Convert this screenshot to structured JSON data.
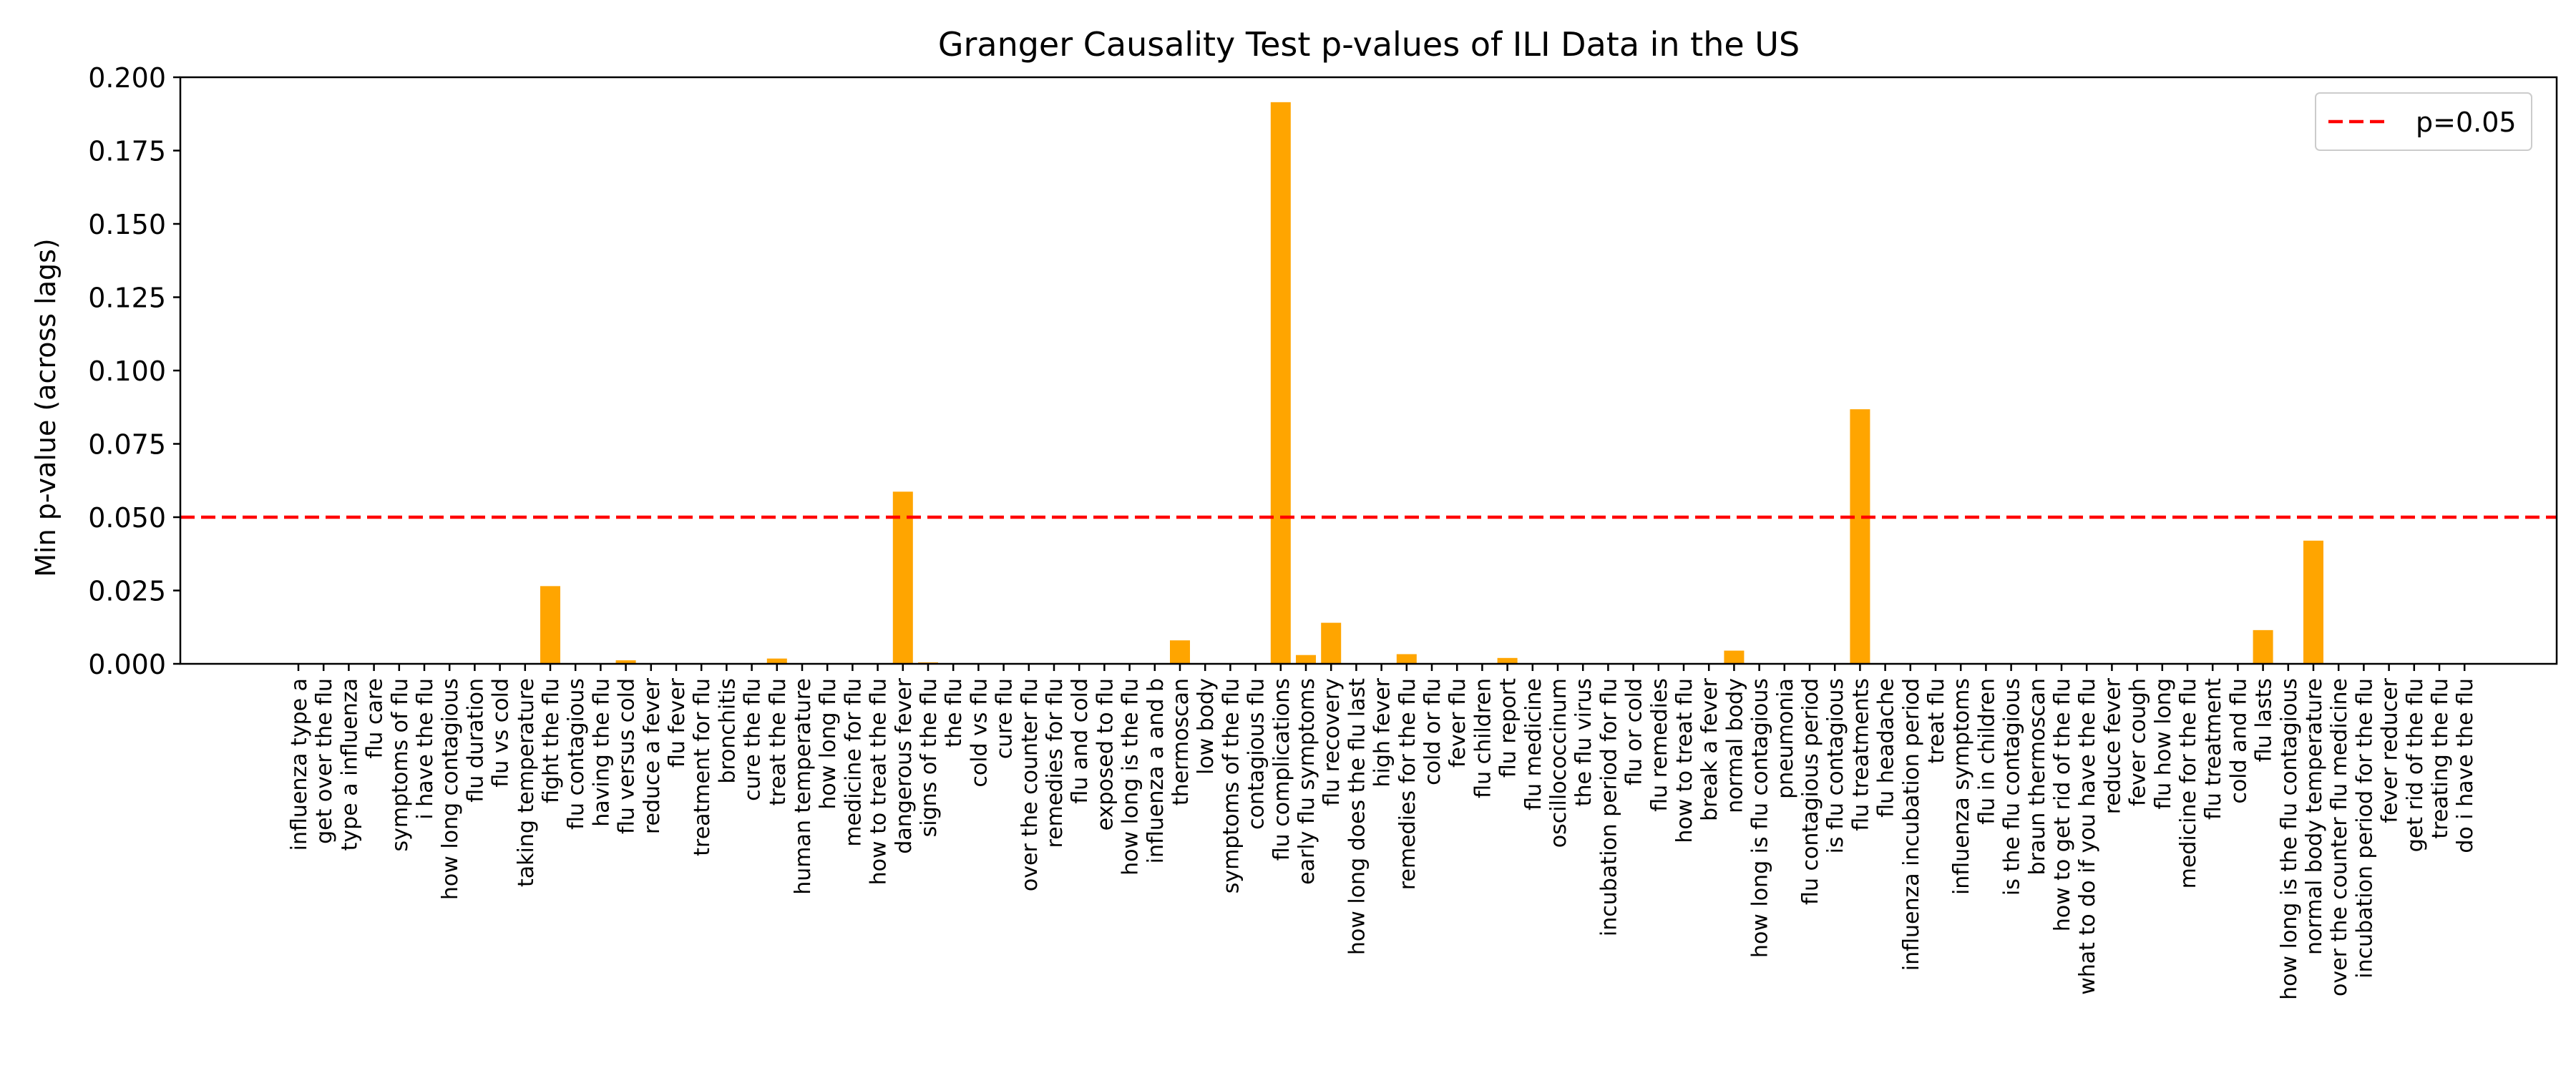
{
  "chart_data": {
    "type": "bar",
    "title": "Granger Causality Test p-values of ILI Data in the US",
    "xlabel": "",
    "ylabel": "Min p-value (across lags)",
    "ylim": [
      0,
      0.2
    ],
    "yticks": [
      "0.000",
      "0.025",
      "0.050",
      "0.075",
      "0.100",
      "0.125",
      "0.150",
      "0.175",
      "0.200"
    ],
    "grid": false,
    "legend": {
      "position": "top-right",
      "entries": [
        {
          "label": "p=0.05",
          "color": "#ff0000",
          "style": "dashed"
        }
      ]
    },
    "reference_line": {
      "value": 0.05,
      "label": "p=0.05",
      "color": "#ff0000"
    },
    "bar_color": "#ffa500",
    "categories": [
      "influenza type a",
      "get over the flu",
      "type a influenza",
      "flu care",
      "symptoms of flu",
      "i have the flu",
      "how long contagious",
      "flu duration",
      "flu vs cold",
      "taking temperature",
      "fight the flu",
      "flu contagious",
      "having the flu",
      "flu versus cold",
      "reduce a fever",
      "flu fever",
      "treatment for flu",
      "bronchitis",
      "cure the flu",
      "treat the flu",
      "human temperature",
      "how long flu",
      "medicine for flu",
      "how to treat the flu",
      "dangerous fever",
      "signs of the flu",
      "the flu",
      "cold vs flu",
      "cure flu",
      "over the counter flu",
      "remedies for flu",
      "flu and cold",
      "exposed to flu",
      "how long is the flu",
      "influenza a and b",
      "thermoscan",
      "low body",
      "symptoms of the flu",
      "contagious flu",
      "flu complications",
      "early flu symptoms",
      "flu recovery",
      "how long does the flu last",
      "high fever",
      "remedies for the flu",
      "cold or flu",
      "fever flu",
      "flu children",
      "flu report",
      "flu medicine",
      "oscillococcinum",
      "the flu virus",
      "incubation period for flu",
      "flu or cold",
      "flu remedies",
      "how to treat flu",
      "break a fever",
      "normal body",
      "how long is flu contagious",
      "pneumonia",
      "flu contagious period",
      "is flu contagious",
      "flu treatments",
      "flu headache",
      "influenza incubation period",
      "treat flu",
      "influenza symptoms",
      "flu in children",
      "is the flu contagious",
      "braun thermoscan",
      "how to get rid of the flu",
      "what to do if you have the flu",
      "reduce fever",
      "fever cough",
      "flu how long",
      "medicine for the flu",
      "flu treatment",
      "cold and flu",
      "flu lasts",
      "how long is the flu contagious",
      "normal body temperature",
      "over the counter flu medicine",
      "incubation period for the flu",
      "fever reducer",
      "get rid of the flu",
      "treating the flu",
      "do i have the flu"
    ],
    "values": [
      0,
      0,
      0,
      0,
      0,
      0,
      0,
      0,
      0,
      0,
      0.0265,
      0,
      0,
      0.0012,
      0,
      0,
      0,
      0,
      0,
      0.0018,
      0,
      0,
      0,
      0,
      0.0587,
      0.0005,
      0,
      0,
      0,
      0,
      0,
      0,
      0,
      0,
      0,
      0.008,
      0,
      0,
      0,
      0.1915,
      0.003,
      0.014,
      0,
      0,
      0.0033,
      0,
      0,
      0,
      0.002,
      0,
      0,
      0,
      0,
      0,
      0,
      0,
      0,
      0.0045,
      0,
      0,
      0,
      0,
      0.0868,
      0,
      0,
      0,
      0,
      0,
      0,
      0,
      0,
      0,
      0,
      0,
      0,
      0,
      0,
      0,
      0.0115,
      0,
      0.042,
      0,
      0,
      0,
      0,
      0,
      0
    ]
  }
}
